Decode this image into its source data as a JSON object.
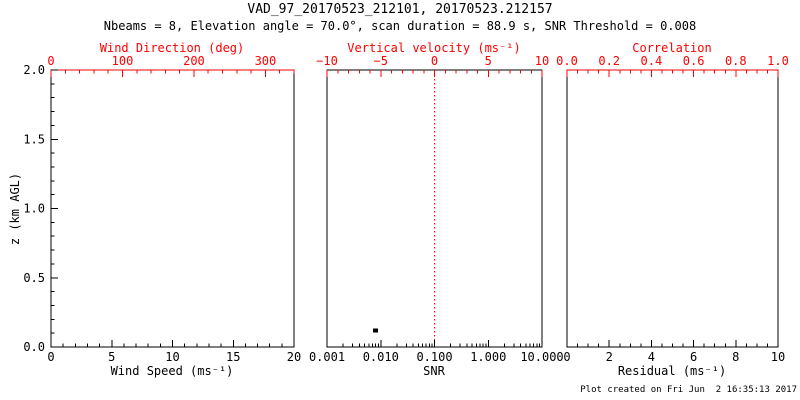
{
  "title": "VAD_97_20170523_212101, 20170523.212157",
  "subtitle": "Nbeams = 8, Elevation angle = 70.0°, scan duration = 88.9 s, SNR Threshold = 0.008",
  "footer": "Plot created on Fri Jun  2 16:35:13 2017",
  "colors": {
    "background": "#ffffff",
    "frame": "#000000",
    "secondary_axis": "#ff0000",
    "data_point": "#000000",
    "reference_line": "#ff0000"
  },
  "y_axis": {
    "label": "z (km AGL)",
    "lim": [
      0,
      2
    ],
    "ticks": [
      0,
      0.5,
      1,
      1.5,
      2
    ],
    "tick_labels": [
      "0.0",
      "0.5",
      "1.0",
      "1.5",
      "2.0"
    ],
    "minor_step": 0.1
  },
  "chart_data": [
    {
      "type": "scatter",
      "name": "wind-speed-panel",
      "xlabel": "Wind Speed (ms⁻¹)",
      "xscale": "linear",
      "xlim": [
        0,
        20
      ],
      "xticks": [
        0,
        5,
        10,
        15,
        20
      ],
      "xtick_labels": [
        "0",
        "5",
        "10",
        "15",
        "20"
      ],
      "x_minor_step": 1,
      "top_label": "Wind Direction (deg)",
      "top_lim": [
        0,
        340
      ],
      "top_ticks": [
        0,
        100,
        200,
        300
      ],
      "top_tick_labels": [
        "0",
        "100",
        "200",
        "300"
      ],
      "top_minor_step": 20,
      "top_axis_color": "#ff0000",
      "ylabel": "z (km AGL)",
      "ylim": [
        0,
        2
      ],
      "grid": false,
      "points": []
    },
    {
      "type": "scatter",
      "name": "snr-panel",
      "xlabel": "SNR",
      "xscale": "log",
      "xlim": [
        0.001,
        10
      ],
      "xticks": [
        0.001,
        0.01,
        0.1,
        1,
        10
      ],
      "xtick_labels": [
        "0.001",
        "0.010",
        "0.100",
        "1.000",
        "10.000"
      ],
      "top_label": "Vertical velocity (ms⁻¹)",
      "top_lim": [
        -10,
        10
      ],
      "top_ticks": [
        -10,
        -5,
        0,
        5,
        10
      ],
      "top_tick_labels": [
        "−10",
        "−5",
        "0",
        "5",
        "10"
      ],
      "top_minor_step": 1,
      "top_axis_color": "#000000",
      "ylim": [
        0,
        2
      ],
      "grid": false,
      "points": [
        {
          "x": 0.008,
          "y": 0.12
        }
      ],
      "vline": {
        "x": 0.1,
        "color": "#ff0000",
        "style": "dotted"
      }
    },
    {
      "type": "scatter",
      "name": "residual-panel",
      "xlabel": "Residual (ms⁻¹)",
      "xscale": "linear",
      "xlim": [
        0,
        10
      ],
      "xticks": [
        0,
        2,
        4,
        6,
        8,
        10
      ],
      "xtick_labels": [
        "0",
        "2",
        "4",
        "6",
        "8",
        "10"
      ],
      "x_minor_step": 0.5,
      "top_label": "Correlation",
      "top_lim": [
        0,
        1
      ],
      "top_ticks": [
        0,
        0.2,
        0.4,
        0.6,
        0.8,
        1
      ],
      "top_tick_labels": [
        "0.0",
        "0.2",
        "0.4",
        "0.6",
        "0.8",
        "1.0"
      ],
      "top_minor_step": 0.05,
      "top_axis_color": "#ff0000",
      "ylim": [
        0,
        2
      ],
      "grid": false,
      "points": []
    }
  ]
}
